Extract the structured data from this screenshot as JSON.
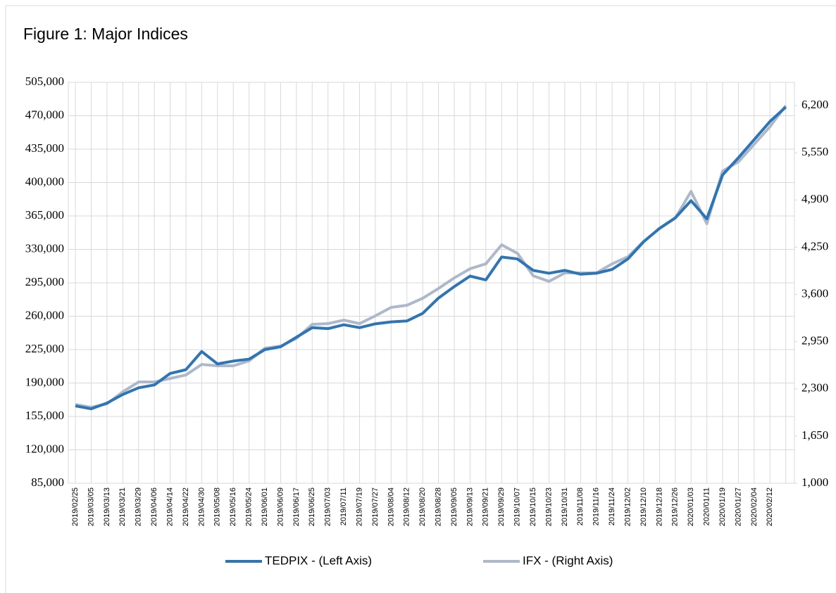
{
  "chart_data": {
    "type": "line",
    "title": "Figure 1: Major Indices",
    "categories": [
      "2019/02/25",
      "2019/03/05",
      "2019/03/13",
      "2019/03/21",
      "2019/03/29",
      "2019/04/06",
      "2019/04/14",
      "2019/04/22",
      "2019/04/30",
      "2019/05/08",
      "2019/05/16",
      "2019/05/24",
      "2019/06/01",
      "2019/06/09",
      "2019/06/17",
      "2019/06/25",
      "2019/07/03",
      "2019/07/11",
      "2019/07/19",
      "2019/07/27",
      "2019/08/04",
      "2019/08/12",
      "2019/08/20",
      "2019/08/28",
      "2019/09/05",
      "2019/09/13",
      "2019/09/21",
      "2019/09/29",
      "2019/10/07",
      "2019/10/15",
      "2019/10/23",
      "2019/10/31",
      "2019/11/08",
      "2019/11/16",
      "2019/11/24",
      "2019/12/02",
      "2019/12/10",
      "2019/12/18",
      "2019/12/26",
      "2020/01/03",
      "2020/01/11",
      "2020/01/19",
      "2020/01/27",
      "2020/02/04",
      "2020/02/12",
      null
    ],
    "series": [
      {
        "name": "TEDPIX - (Left Axis)",
        "color": "#2e75b6",
        "axis": "y",
        "values": [
          166000,
          163000,
          169000,
          178000,
          185000,
          188000,
          200000,
          204000,
          223000,
          210000,
          213000,
          215000,
          225000,
          228000,
          238000,
          248000,
          247000,
          251000,
          248000,
          252000,
          254000,
          255000,
          263000,
          279000,
          291000,
          302000,
          298000,
          322000,
          320000,
          308000,
          305000,
          308000,
          304000,
          305000,
          309000,
          320000,
          338000,
          352000,
          363000,
          381000,
          362000,
          408000,
          426000,
          445000,
          464000,
          479000
        ]
      },
      {
        "name": "IFX - (Right Axis)",
        "color": "#adb9ca",
        "axis": "y2",
        "values": [
          2085,
          2046,
          2094,
          2259,
          2394,
          2394,
          2443,
          2491,
          2636,
          2617,
          2617,
          2685,
          2859,
          2888,
          2995,
          3188,
          3198,
          3246,
          3198,
          3305,
          3421,
          3450,
          3547,
          3682,
          3827,
          3953,
          4021,
          4283,
          4166,
          3857,
          3779,
          3895,
          3895,
          3895,
          4021,
          4118,
          4331,
          4505,
          4650,
          5018,
          4573,
          5299,
          5425,
          5667,
          5909,
          6200
        ]
      }
    ],
    "ylim": [
      85000,
      505000
    ],
    "yticks": [
      {
        "value": 85000,
        "label": "85,000"
      },
      {
        "value": 120000,
        "label": "120,000"
      },
      {
        "value": 155000,
        "label": "155,000"
      },
      {
        "value": 190000,
        "label": "190,000"
      },
      {
        "value": 225000,
        "label": "225,000"
      },
      {
        "value": 260000,
        "label": "260,000"
      },
      {
        "value": 295000,
        "label": "295,000"
      },
      {
        "value": 330000,
        "label": "330,000"
      },
      {
        "value": 365000,
        "label": "365,000"
      },
      {
        "value": 400000,
        "label": "400,000"
      },
      {
        "value": 435000,
        "label": "435,000"
      },
      {
        "value": 470000,
        "label": "470,000"
      },
      {
        "value": 505000,
        "label": "505,000"
      }
    ],
    "y2lim": [
      1000,
      6520
    ],
    "y2ticks": [
      {
        "value": 1000,
        "label": "1,000"
      },
      {
        "value": 1650,
        "label": "1,650"
      },
      {
        "value": 2300,
        "label": "2,300"
      },
      {
        "value": 2950,
        "label": "2,950"
      },
      {
        "value": 3600,
        "label": "3,600"
      },
      {
        "value": 4250,
        "label": "4,250"
      },
      {
        "value": 4900,
        "label": "4,900"
      },
      {
        "value": 5550,
        "label": "5,550"
      },
      {
        "value": 6200,
        "label": "6,200"
      }
    ],
    "grid": true,
    "legend": "bottom"
  }
}
